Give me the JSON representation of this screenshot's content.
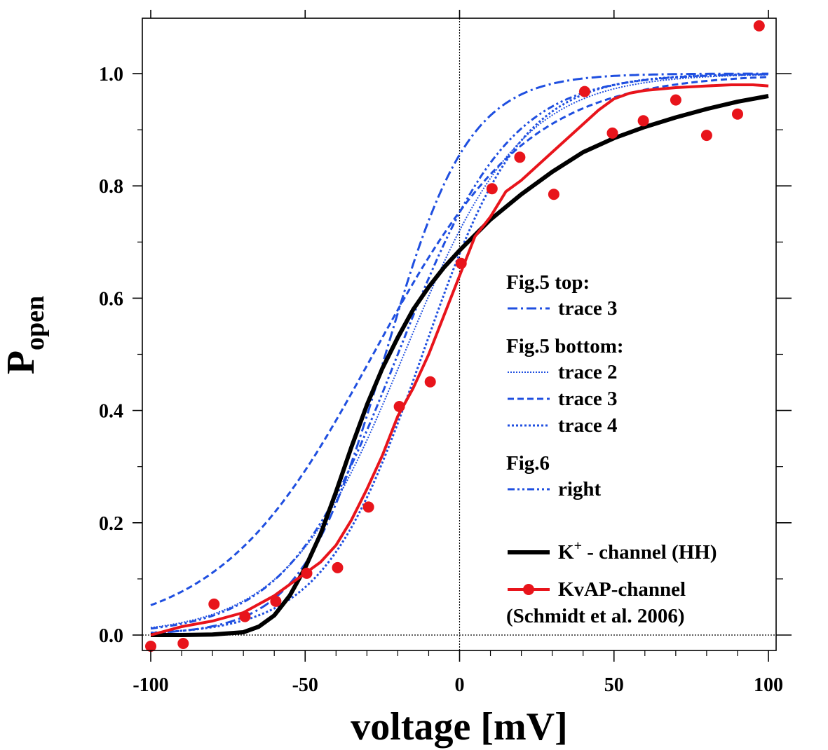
{
  "chart_data": {
    "type": "line",
    "xlabel": "voltage [mV]",
    "ylabel_main": "P",
    "ylabel_sub": "open",
    "xlim": [
      -103,
      103
    ],
    "ylim": [
      -0.03,
      1.1
    ],
    "x_ticks": [
      -100,
      -50,
      0,
      50,
      100
    ],
    "x_tick_labels": [
      "-100",
      "-50",
      "0",
      "50",
      "100"
    ],
    "y_ticks": [
      0.0,
      0.2,
      0.4,
      0.6,
      0.8,
      1.0
    ],
    "y_tick_labels": [
      "0.0",
      "0.2",
      "0.4",
      "0.6",
      "0.8",
      "1.0"
    ],
    "reference_lines": [
      {
        "orientation": "vertical",
        "at": 0
      },
      {
        "orientation": "horizontal",
        "at": 0
      }
    ],
    "legend": {
      "placement": "right",
      "groups": [
        {
          "heading": "Fig.5 top:",
          "entries": [
            {
              "label": "trace 3",
              "series": "fig5_top_trace3"
            }
          ]
        },
        {
          "heading": "Fig.5 bottom:",
          "entries": [
            {
              "label": "trace 2",
              "series": "fig5_bottom_trace2"
            },
            {
              "label": "trace 3",
              "series": "fig5_bottom_trace3"
            },
            {
              "label": "trace 4",
              "series": "fig5_bottom_trace4"
            }
          ]
        },
        {
          "heading": "Fig.6",
          "entries": [
            {
              "label": "right",
              "series": "fig6_right"
            }
          ]
        },
        {
          "heading": "",
          "entries": [
            {
              "label": "K",
              "label_sup": "+",
              "label_rest": " - channel (HH)",
              "series": "k_channel_hh"
            },
            {
              "label": "KvAP-channel",
              "label_line2": "(Schmidt et al. 2006)",
              "series": "kvap_channel"
            }
          ]
        }
      ]
    },
    "series": [
      {
        "id": "fig5_top_trace3",
        "name": "Fig.5 top: trace 3",
        "style": "dash-dot",
        "color": "#1f4fe0",
        "width": 3,
        "model": "boltzmann",
        "v_half": -24,
        "k": 13.5
      },
      {
        "id": "fig5_bottom_trace2",
        "name": "Fig.5 bottom: trace 2",
        "style": "dotted",
        "color": "#1f4fe0",
        "width": 2,
        "model": "boltzmann",
        "v_half": -18,
        "k": 19
      },
      {
        "id": "fig5_bottom_trace3",
        "name": "Fig.5 bottom: trace 3",
        "style": "dashed",
        "color": "#1f4fe0",
        "width": 3,
        "model": "boltzmann",
        "v_half": -28,
        "k": 25
      },
      {
        "id": "fig5_bottom_trace4",
        "name": "Fig.5 bottom: trace 4",
        "style": "dense-dotted",
        "color": "#1f4fe0",
        "width": 3,
        "model": "boltzmann",
        "v_half": -12,
        "k": 16
      },
      {
        "id": "fig6_right",
        "name": "Fig.6 right",
        "style": "dash-dot-dot",
        "color": "#1f4fe0",
        "width": 3,
        "model": "boltzmann",
        "v_half": -20,
        "k": 18
      },
      {
        "id": "k_channel_hh",
        "name": "K+ - channel (HH)",
        "style": "solid",
        "color": "#000000",
        "width": 6,
        "x": [
          -100,
          -90,
          -80,
          -70,
          -65,
          -60,
          -55,
          -50,
          -45,
          -40,
          -35,
          -30,
          -25,
          -20,
          -15,
          -10,
          -5,
          0,
          10,
          20,
          30,
          40,
          50,
          60,
          70,
          80,
          90,
          100
        ],
        "y": [
          0.0,
          0.0,
          0.001,
          0.005,
          0.015,
          0.035,
          0.07,
          0.12,
          0.18,
          0.255,
          0.335,
          0.41,
          0.475,
          0.53,
          0.58,
          0.62,
          0.655,
          0.685,
          0.74,
          0.785,
          0.825,
          0.86,
          0.885,
          0.905,
          0.922,
          0.937,
          0.95,
          0.96
        ]
      },
      {
        "id": "kvap_channel",
        "name": "KvAP-channel (Schmidt et al. 2006)",
        "style": "solid",
        "color": "#e8141b",
        "width": 4,
        "line_x": [
          -100,
          -90,
          -80,
          -70,
          -65,
          -60,
          -55,
          -50,
          -45,
          -40,
          -35,
          -30,
          -25,
          -20,
          -15,
          -10,
          -5,
          0,
          5,
          10,
          15,
          20,
          30,
          40,
          45,
          50,
          55,
          60,
          70,
          80,
          88,
          95,
          100
        ],
        "line_y": [
          0.0,
          0.015,
          0.025,
          0.04,
          0.055,
          0.07,
          0.09,
          0.11,
          0.13,
          0.16,
          0.205,
          0.26,
          0.32,
          0.39,
          0.44,
          0.5,
          0.57,
          0.64,
          0.71,
          0.745,
          0.79,
          0.81,
          0.86,
          0.91,
          0.935,
          0.955,
          0.965,
          0.97,
          0.975,
          0.978,
          0.98,
          0.98,
          0.978
        ],
        "points_x": [
          -100,
          -89.5,
          -79.5,
          -69.5,
          -59.5,
          -49.5,
          -39.5,
          -29.5,
          -19.5,
          -9.5,
          0.5,
          10.5,
          19.5,
          30.5,
          40.5,
          49.5,
          59.5,
          70,
          80,
          90,
          97
        ],
        "points_y": [
          -0.02,
          -0.015,
          0.055,
          0.033,
          0.06,
          0.11,
          0.12,
          0.228,
          0.407,
          0.451,
          0.662,
          0.795,
          0.851,
          0.785,
          0.968,
          0.894,
          0.916,
          0.953,
          0.89,
          0.928,
          1.085
        ]
      }
    ]
  }
}
